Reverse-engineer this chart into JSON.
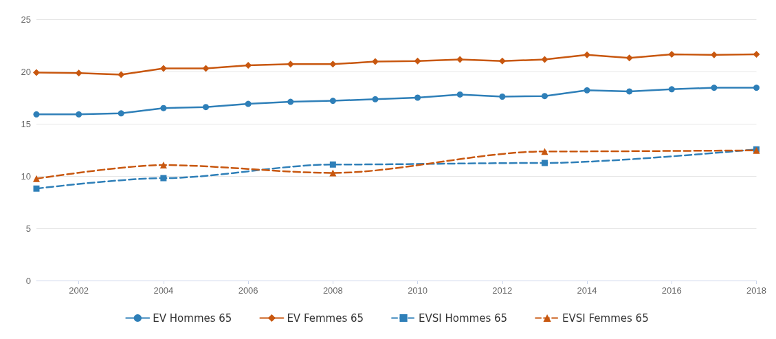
{
  "chart_data": {
    "type": "line",
    "xlim": [
      2001,
      2018
    ],
    "xticks": [
      2002,
      2004,
      2006,
      2008,
      2010,
      2012,
      2014,
      2016,
      2018
    ],
    "ylim": [
      0,
      25
    ],
    "yticks": [
      0,
      5,
      10,
      15,
      20,
      25
    ],
    "grid": "y",
    "legend": "bottom",
    "series": [
      {
        "name": "EV Hommes 65",
        "color": "#2e7fb8",
        "marker": "circle",
        "line_style": "solid",
        "x": [
          2001,
          2002,
          2003,
          2004,
          2005,
          2006,
          2007,
          2008,
          2009,
          2010,
          2011,
          2012,
          2013,
          2014,
          2015,
          2016,
          2017,
          2018
        ],
        "values": [
          15.9,
          15.9,
          16.0,
          16.5,
          16.6,
          16.9,
          17.1,
          17.2,
          17.35,
          17.5,
          17.8,
          17.6,
          17.65,
          18.2,
          18.1,
          18.3,
          18.45,
          18.45
        ]
      },
      {
        "name": "EV Femmes 65",
        "color": "#c8570f",
        "marker": "diamond",
        "line_style": "solid",
        "x": [
          2001,
          2002,
          2003,
          2004,
          2005,
          2006,
          2007,
          2008,
          2009,
          2010,
          2011,
          2012,
          2013,
          2014,
          2015,
          2016,
          2017,
          2018
        ],
        "values": [
          19.9,
          19.85,
          19.7,
          20.3,
          20.3,
          20.6,
          20.7,
          20.7,
          20.95,
          21.0,
          21.15,
          21.0,
          21.15,
          21.6,
          21.3,
          21.65,
          21.6,
          21.65
        ]
      },
      {
        "name": "EVSI Hommes 65",
        "color": "#2e7fb8",
        "marker": "square",
        "line_style": "dashed",
        "x": [
          2001,
          2004,
          2008,
          2013,
          2018
        ],
        "values": [
          8.8,
          9.8,
          11.1,
          11.25,
          12.55
        ]
      },
      {
        "name": "EVSI Femmes 65",
        "color": "#c8570f",
        "marker": "triangle",
        "line_style": "dashed",
        "x": [
          2001,
          2004,
          2008,
          2013,
          2018
        ],
        "values": [
          9.75,
          11.05,
          10.3,
          12.35,
          12.45
        ]
      }
    ]
  }
}
